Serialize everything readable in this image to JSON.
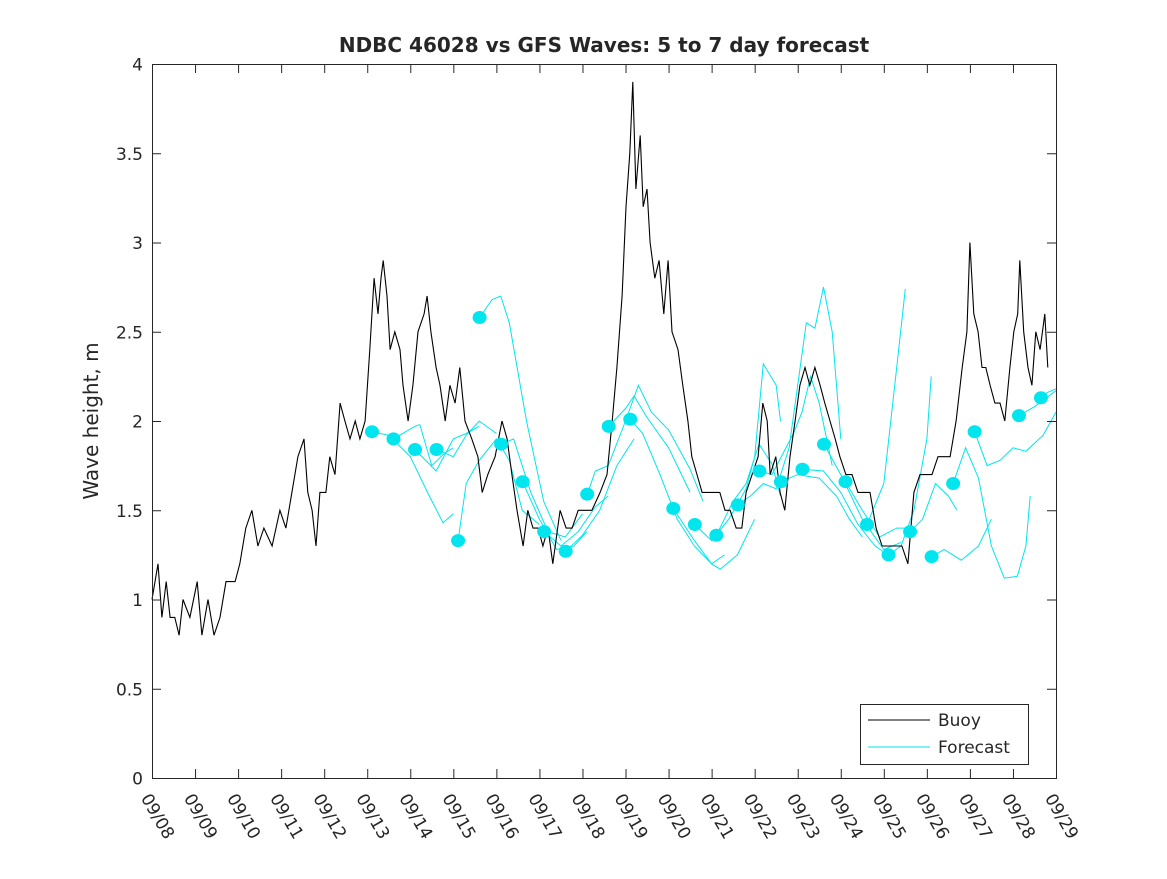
{
  "chart_data": {
    "type": "line",
    "title": "NDBC 46028 vs GFS Waves: 5 to 7 day forecast",
    "xlabel": "",
    "ylabel": "Wave height, m",
    "x_units": "days since 09/08",
    "xlim": [
      0,
      21
    ],
    "ylim": [
      0,
      4
    ],
    "x_tick_labels": [
      "09/08",
      "09/09",
      "09/10",
      "09/11",
      "09/12",
      "09/13",
      "09/14",
      "09/15",
      "09/16",
      "09/17",
      "09/18",
      "09/19",
      "09/20",
      "09/21",
      "09/22",
      "09/23",
      "09/24",
      "09/25",
      "09/26",
      "09/27",
      "09/28",
      "09/29"
    ],
    "y_ticks": [
      0,
      0.5,
      1,
      1.5,
      2,
      2.5,
      3,
      3.5,
      4
    ],
    "y_tick_labels": [
      "0",
      "0.5",
      "1",
      "1.5",
      "2",
      "2.5",
      "3",
      "3.5",
      "4"
    ],
    "grid": false,
    "legend": {
      "placement": "bottom-right",
      "entries": [
        "Buoy",
        "Forecast"
      ]
    },
    "colors": {
      "buoy": "#000000",
      "forecast": "#00e5ee"
    },
    "buoy": [
      [
        0,
        1.0
      ],
      [
        0.14,
        1.2
      ],
      [
        0.23,
        0.9
      ],
      [
        0.33,
        1.1
      ],
      [
        0.42,
        0.9
      ],
      [
        0.53,
        0.9
      ],
      [
        0.63,
        0.8
      ],
      [
        0.72,
        1.0
      ],
      [
        0.88,
        0.9
      ],
      [
        1.05,
        1.1
      ],
      [
        1.16,
        0.8
      ],
      [
        1.3,
        1.0
      ],
      [
        1.44,
        0.8
      ],
      [
        1.58,
        0.9
      ],
      [
        1.72,
        1.1
      ],
      [
        1.93,
        1.1
      ],
      [
        2.04,
        1.2
      ],
      [
        2.18,
        1.4
      ],
      [
        2.32,
        1.5
      ],
      [
        2.46,
        1.3
      ],
      [
        2.6,
        1.4
      ],
      [
        2.79,
        1.3
      ],
      [
        2.97,
        1.5
      ],
      [
        3.11,
        1.4
      ],
      [
        3.25,
        1.6
      ],
      [
        3.39,
        1.8
      ],
      [
        3.53,
        1.9
      ],
      [
        3.62,
        1.6
      ],
      [
        3.72,
        1.5
      ],
      [
        3.81,
        1.3
      ],
      [
        3.9,
        1.6
      ],
      [
        4.04,
        1.6
      ],
      [
        4.13,
        1.8
      ],
      [
        4.25,
        1.7
      ],
      [
        4.37,
        2.1
      ],
      [
        4.48,
        2.0
      ],
      [
        4.6,
        1.9
      ],
      [
        4.72,
        2.0
      ],
      [
        4.83,
        1.9
      ],
      [
        4.95,
        2.0
      ],
      [
        5.06,
        2.4
      ],
      [
        5.16,
        2.8
      ],
      [
        5.25,
        2.6
      ],
      [
        5.32,
        2.8
      ],
      [
        5.37,
        2.9
      ],
      [
        5.46,
        2.7
      ],
      [
        5.53,
        2.4
      ],
      [
        5.64,
        2.5
      ],
      [
        5.76,
        2.4
      ],
      [
        5.83,
        2.2
      ],
      [
        5.95,
        2.0
      ],
      [
        6.06,
        2.2
      ],
      [
        6.18,
        2.5
      ],
      [
        6.32,
        2.6
      ],
      [
        6.39,
        2.7
      ],
      [
        6.48,
        2.5
      ],
      [
        6.6,
        2.3
      ],
      [
        6.69,
        2.2
      ],
      [
        6.81,
        2.0
      ],
      [
        6.92,
        2.2
      ],
      [
        7.04,
        2.1
      ],
      [
        7.15,
        2.3
      ],
      [
        7.27,
        2.0
      ],
      [
        7.43,
        1.9
      ],
      [
        7.57,
        1.8
      ],
      [
        7.67,
        1.6
      ],
      [
        7.8,
        1.7
      ],
      [
        7.97,
        1.8
      ],
      [
        8.13,
        2.0
      ],
      [
        8.25,
        1.9
      ],
      [
        8.36,
        1.7
      ],
      [
        8.48,
        1.5
      ],
      [
        8.62,
        1.3
      ],
      [
        8.73,
        1.5
      ],
      [
        8.85,
        1.4
      ],
      [
        8.97,
        1.4
      ],
      [
        9.08,
        1.3
      ],
      [
        9.2,
        1.4
      ],
      [
        9.31,
        1.2
      ],
      [
        9.48,
        1.5
      ],
      [
        9.62,
        1.4
      ],
      [
        9.76,
        1.4
      ],
      [
        9.9,
        1.5
      ],
      [
        10.06,
        1.5
      ],
      [
        10.22,
        1.5
      ],
      [
        10.41,
        1.6
      ],
      [
        10.57,
        1.7
      ],
      [
        10.69,
        2.0
      ],
      [
        10.8,
        2.3
      ],
      [
        10.92,
        2.7
      ],
      [
        11.01,
        3.2
      ],
      [
        11.1,
        3.5
      ],
      [
        11.17,
        3.9
      ],
      [
        11.24,
        3.3
      ],
      [
        11.34,
        3.6
      ],
      [
        11.41,
        3.2
      ],
      [
        11.5,
        3.3
      ],
      [
        11.57,
        3.0
      ],
      [
        11.68,
        2.8
      ],
      [
        11.78,
        2.9
      ],
      [
        11.89,
        2.6
      ],
      [
        11.99,
        2.9
      ],
      [
        12.08,
        2.5
      ],
      [
        12.22,
        2.4
      ],
      [
        12.33,
        2.2
      ],
      [
        12.45,
        2.0
      ],
      [
        12.54,
        1.8
      ],
      [
        12.66,
        1.7
      ],
      [
        12.78,
        1.6
      ],
      [
        12.92,
        1.6
      ],
      [
        13.08,
        1.6
      ],
      [
        13.19,
        1.6
      ],
      [
        13.31,
        1.5
      ],
      [
        13.43,
        1.5
      ],
      [
        13.57,
        1.4
      ],
      [
        13.7,
        1.4
      ],
      [
        13.8,
        1.6
      ],
      [
        13.94,
        1.7
      ],
      [
        14.08,
        1.8
      ],
      [
        14.19,
        2.1
      ],
      [
        14.29,
        2.0
      ],
      [
        14.36,
        1.7
      ],
      [
        14.49,
        1.8
      ],
      [
        14.59,
        1.6
      ],
      [
        14.7,
        1.5
      ],
      [
        14.82,
        1.8
      ],
      [
        14.94,
        2.0
      ],
      [
        15.05,
        2.2
      ],
      [
        15.17,
        2.3
      ],
      [
        15.28,
        2.2
      ],
      [
        15.4,
        2.3
      ],
      [
        15.52,
        2.2
      ],
      [
        15.63,
        2.1
      ],
      [
        15.75,
        2.0
      ],
      [
        15.87,
        1.9
      ],
      [
        15.98,
        1.8
      ],
      [
        16.12,
        1.7
      ],
      [
        16.26,
        1.7
      ],
      [
        16.4,
        1.6
      ],
      [
        16.54,
        1.6
      ],
      [
        16.68,
        1.6
      ],
      [
        16.82,
        1.4
      ],
      [
        16.96,
        1.3
      ],
      [
        17.1,
        1.3
      ],
      [
        17.26,
        1.3
      ],
      [
        17.42,
        1.3
      ],
      [
        17.56,
        1.2
      ],
      [
        17.7,
        1.6
      ],
      [
        17.84,
        1.7
      ],
      [
        17.98,
        1.7
      ],
      [
        18.12,
        1.7
      ],
      [
        18.26,
        1.8
      ],
      [
        18.4,
        1.8
      ],
      [
        18.54,
        1.8
      ],
      [
        18.68,
        2.0
      ],
      [
        18.82,
        2.3
      ],
      [
        18.93,
        2.5
      ],
      [
        19.0,
        3.0
      ],
      [
        19.09,
        2.6
      ],
      [
        19.19,
        2.5
      ],
      [
        19.28,
        2.3
      ],
      [
        19.37,
        2.3
      ],
      [
        19.47,
        2.2
      ],
      [
        19.58,
        2.1
      ],
      [
        19.7,
        2.1
      ],
      [
        19.81,
        2.0
      ],
      [
        19.93,
        2.3
      ],
      [
        20.02,
        2.5
      ],
      [
        20.11,
        2.6
      ],
      [
        20.16,
        2.9
      ],
      [
        20.25,
        2.5
      ],
      [
        20.35,
        2.3
      ],
      [
        20.44,
        2.2
      ],
      [
        20.53,
        2.5
      ],
      [
        20.63,
        2.4
      ],
      [
        20.74,
        2.6
      ],
      [
        20.81,
        2.3
      ]
    ],
    "forecast_markers": [
      [
        5.11,
        1.94
      ],
      [
        5.61,
        1.9
      ],
      [
        6.11,
        1.84
      ],
      [
        6.61,
        1.84
      ],
      [
        7.11,
        1.33
      ],
      [
        7.61,
        2.58
      ],
      [
        8.11,
        1.87
      ],
      [
        8.61,
        1.66
      ],
      [
        9.11,
        1.38
      ],
      [
        9.61,
        1.27
      ],
      [
        10.11,
        1.59
      ],
      [
        10.61,
        1.97
      ],
      [
        11.11,
        2.01
      ],
      [
        12.11,
        1.51
      ],
      [
        12.61,
        1.42
      ],
      [
        13.11,
        1.36
      ],
      [
        13.61,
        1.53
      ],
      [
        14.11,
        1.72
      ],
      [
        14.61,
        1.66
      ],
      [
        15.11,
        1.73
      ],
      [
        15.61,
        1.87
      ],
      [
        16.11,
        1.66
      ],
      [
        16.61,
        1.42
      ],
      [
        17.11,
        1.25
      ],
      [
        17.61,
        1.38
      ],
      [
        18.11,
        1.24
      ],
      [
        18.61,
        1.65
      ],
      [
        19.11,
        1.94
      ],
      [
        20.14,
        2.03
      ],
      [
        20.65,
        2.13
      ]
    ],
    "forecast_traces": [
      [
        [
          5.11,
          1.94
        ],
        [
          5.5,
          1.92
        ],
        [
          6.0,
          1.8
        ],
        [
          6.4,
          1.6
        ],
        [
          6.76,
          1.43
        ],
        [
          7.0,
          1.48
        ]
      ],
      [
        [
          5.61,
          1.9
        ],
        [
          6.1,
          1.97
        ],
        [
          6.22,
          1.98
        ],
        [
          6.5,
          1.75
        ],
        [
          6.8,
          1.82
        ],
        [
          7.0,
          1.85
        ]
      ],
      [
        [
          6.11,
          1.84
        ],
        [
          6.6,
          1.72
        ],
        [
          7.0,
          1.9
        ],
        [
          7.3,
          1.93
        ],
        [
          7.6,
          1.97
        ]
      ],
      [
        [
          6.61,
          1.84
        ],
        [
          7.0,
          1.8
        ],
        [
          7.3,
          1.92
        ],
        [
          7.6,
          2.0
        ],
        [
          8.0,
          1.93
        ]
      ],
      [
        [
          7.11,
          1.33
        ],
        [
          7.3,
          1.65
        ],
        [
          7.6,
          1.78
        ],
        [
          8.0,
          1.9
        ],
        [
          8.3,
          1.78
        ],
        [
          8.6,
          1.5
        ],
        [
          9.0,
          1.42
        ]
      ],
      [
        [
          7.61,
          2.58
        ],
        [
          7.9,
          2.68
        ],
        [
          8.1,
          2.7
        ],
        [
          8.3,
          2.55
        ],
        [
          8.7,
          2.0
        ],
        [
          9.1,
          1.55
        ],
        [
          9.5,
          1.33
        ]
      ],
      [
        [
          8.11,
          1.87
        ],
        [
          8.4,
          1.9
        ],
        [
          8.8,
          1.6
        ],
        [
          9.2,
          1.38
        ],
        [
          9.6,
          1.35
        ],
        [
          10.0,
          1.48
        ]
      ],
      [
        [
          8.61,
          1.66
        ],
        [
          9.0,
          1.45
        ],
        [
          9.4,
          1.28
        ],
        [
          9.8,
          1.3
        ],
        [
          10.1,
          1.38
        ]
      ],
      [
        [
          9.11,
          1.38
        ],
        [
          9.5,
          1.3
        ],
        [
          9.9,
          1.38
        ],
        [
          10.3,
          1.52
        ],
        [
          10.6,
          1.58
        ]
      ],
      [
        [
          9.61,
          1.27
        ],
        [
          10.0,
          1.36
        ],
        [
          10.4,
          1.5
        ],
        [
          10.8,
          1.75
        ],
        [
          11.2,
          1.9
        ]
      ],
      [
        [
          10.11,
          1.59
        ],
        [
          10.3,
          1.72
        ],
        [
          10.6,
          1.75
        ],
        [
          11.0,
          2.0
        ],
        [
          11.3,
          2.2
        ],
        [
          11.6,
          2.05
        ],
        [
          12.0,
          1.95
        ],
        [
          12.5,
          1.73
        ],
        [
          12.8,
          1.55
        ]
      ],
      [
        [
          10.61,
          1.97
        ],
        [
          11.0,
          2.07
        ],
        [
          11.2,
          2.14
        ],
        [
          11.5,
          2.02
        ],
        [
          12.0,
          1.85
        ],
        [
          12.5,
          1.6
        ]
      ],
      [
        [
          11.11,
          2.01
        ],
        [
          11.4,
          1.93
        ],
        [
          11.8,
          1.7
        ],
        [
          12.2,
          1.45
        ],
        [
          12.6,
          1.3
        ],
        [
          13.0,
          1.2
        ],
        [
          13.2,
          1.17
        ],
        [
          13.6,
          1.25
        ],
        [
          14.0,
          1.45
        ]
      ],
      [
        [
          12.11,
          1.51
        ],
        [
          12.6,
          1.33
        ],
        [
          13.0,
          1.2
        ],
        [
          13.3,
          1.25
        ]
      ],
      [
        [
          12.61,
          1.42
        ],
        [
          13.0,
          1.33
        ],
        [
          13.4,
          1.45
        ],
        [
          13.8,
          1.62
        ],
        [
          14.0,
          1.8
        ],
        [
          14.2,
          2.32
        ],
        [
          14.5,
          2.2
        ],
        [
          14.6,
          2.0
        ]
      ],
      [
        [
          13.11,
          1.36
        ],
        [
          13.5,
          1.55
        ],
        [
          13.8,
          1.65
        ],
        [
          14.1,
          1.87
        ],
        [
          14.4,
          1.76
        ],
        [
          14.6,
          1.58
        ]
      ],
      [
        [
          13.61,
          1.53
        ],
        [
          13.9,
          1.58
        ],
        [
          14.2,
          1.65
        ],
        [
          14.5,
          1.62
        ],
        [
          14.8,
          1.85
        ],
        [
          15.0,
          2.2
        ],
        [
          15.2,
          2.55
        ],
        [
          15.4,
          2.52
        ],
        [
          15.6,
          2.75
        ],
        [
          15.8,
          2.5
        ],
        [
          16.0,
          1.9
        ]
      ],
      [
        [
          14.11,
          1.72
        ],
        [
          14.4,
          1.7
        ],
        [
          14.9,
          1.93
        ],
        [
          15.1,
          2.05
        ],
        [
          15.3,
          2.25
        ],
        [
          15.5,
          2.1
        ],
        [
          15.8,
          1.75
        ]
      ],
      [
        [
          14.61,
          1.66
        ],
        [
          15.0,
          1.7
        ],
        [
          15.5,
          1.68
        ],
        [
          15.9,
          1.58
        ],
        [
          16.2,
          1.45
        ],
        [
          16.5,
          1.35
        ]
      ],
      [
        [
          15.11,
          1.73
        ],
        [
          15.6,
          1.72
        ],
        [
          16.0,
          1.6
        ],
        [
          16.4,
          1.42
        ],
        [
          16.8,
          1.3
        ],
        [
          17.1,
          1.25
        ]
      ],
      [
        [
          15.61,
          1.87
        ],
        [
          16.0,
          1.7
        ],
        [
          16.5,
          1.45
        ],
        [
          17.0,
          1.28
        ],
        [
          17.4,
          1.32
        ]
      ],
      [
        [
          16.11,
          1.66
        ],
        [
          16.5,
          1.5
        ],
        [
          16.9,
          1.35
        ],
        [
          17.3,
          1.4
        ],
        [
          17.6,
          1.4
        ]
      ],
      [
        [
          16.61,
          1.42
        ],
        [
          17.0,
          1.65
        ],
        [
          17.3,
          2.3
        ],
        [
          17.5,
          2.74
        ]
      ],
      [
        [
          17.11,
          1.25
        ],
        [
          17.4,
          1.3
        ],
        [
          17.7,
          1.5
        ],
        [
          18.0,
          1.9
        ],
        [
          18.1,
          2.25
        ]
      ],
      [
        [
          17.61,
          1.38
        ],
        [
          17.9,
          1.45
        ],
        [
          18.2,
          1.65
        ],
        [
          18.5,
          1.58
        ],
        [
          18.7,
          1.5
        ]
      ],
      [
        [
          18.11,
          1.24
        ],
        [
          18.4,
          1.28
        ],
        [
          18.8,
          1.22
        ],
        [
          19.2,
          1.3
        ],
        [
          19.5,
          1.45
        ]
      ],
      [
        [
          18.61,
          1.65
        ],
        [
          18.9,
          1.85
        ],
        [
          19.2,
          1.68
        ],
        [
          19.5,
          1.3
        ],
        [
          19.8,
          1.12
        ],
        [
          20.1,
          1.13
        ],
        [
          20.3,
          1.3
        ],
        [
          20.4,
          1.58
        ]
      ],
      [
        [
          19.11,
          1.94
        ],
        [
          19.4,
          1.75
        ],
        [
          19.7,
          1.78
        ],
        [
          20.0,
          1.85
        ],
        [
          20.3,
          1.83
        ],
        [
          20.7,
          1.92
        ],
        [
          21.0,
          2.05
        ]
      ],
      [
        [
          20.14,
          2.03
        ],
        [
          20.5,
          2.08
        ],
        [
          21.0,
          2.17
        ]
      ],
      [
        [
          20.65,
          2.13
        ],
        [
          20.8,
          2.16
        ],
        [
          21.0,
          2.18
        ]
      ]
    ]
  }
}
